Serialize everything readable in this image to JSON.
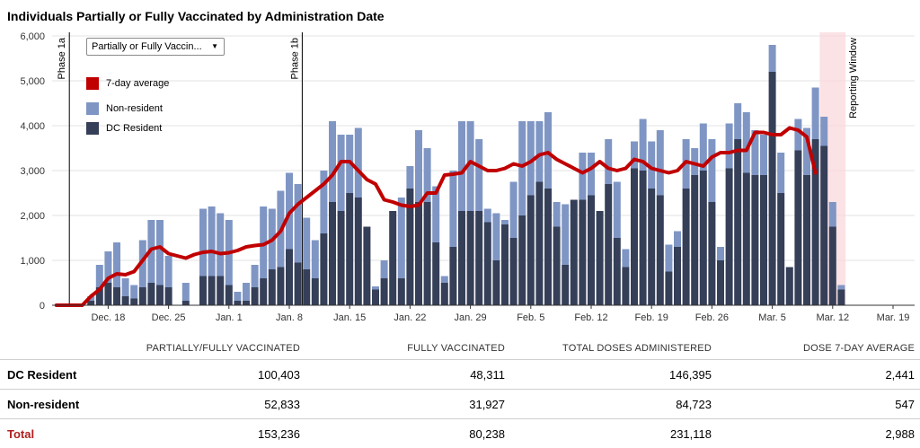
{
  "title": "Individuals Partially or Fully Vaccinated by Administration Date",
  "dropdown": {
    "selected": "Partially or Fully Vaccin...",
    "arrow_icon": "triangle-down-icon"
  },
  "legend": [
    {
      "label": "7-day average",
      "color": "#c00000"
    },
    {
      "label": "Non-resident",
      "color": "#7f96c4"
    },
    {
      "label": "DC Resident",
      "color": "#353f58"
    }
  ],
  "chart_data": {
    "type": "bar",
    "stacked": true,
    "title": "Individuals Partially or Fully Vaccinated by Administration Date",
    "x_start": "Dec. 12",
    "ylim": [
      0,
      6000
    ],
    "y_ticks": [
      0,
      1000,
      2000,
      3000,
      4000,
      5000,
      6000
    ],
    "y_tick_labels": [
      "0",
      "1,000",
      "2,000",
      "3,000",
      "4,000",
      "5,000",
      "6,000"
    ],
    "x_ticks": [
      {
        "label": "Dec. 18",
        "day": 6
      },
      {
        "label": "Dec. 25",
        "day": 13
      },
      {
        "label": "Jan. 1",
        "day": 20
      },
      {
        "label": "Jan. 8",
        "day": 27
      },
      {
        "label": "Jan. 15",
        "day": 34
      },
      {
        "label": "Jan. 22",
        "day": 41
      },
      {
        "label": "Jan. 29",
        "day": 48
      },
      {
        "label": "Feb. 5",
        "day": 55
      },
      {
        "label": "Feb. 12",
        "day": 62
      },
      {
        "label": "Feb. 19",
        "day": 69
      },
      {
        "label": "Feb. 26",
        "day": 76
      },
      {
        "label": "Mar. 5",
        "day": 83
      },
      {
        "label": "Mar. 12",
        "day": 90
      },
      {
        "label": "Mar. 19",
        "day": 97
      }
    ],
    "grid": "horizontal",
    "annotations": [
      {
        "label": "Phase 1a",
        "day": 2,
        "type": "line"
      },
      {
        "label": "Phase 1b",
        "day": 29,
        "type": "line"
      },
      {
        "label": "Reporting Window",
        "day_start": 89,
        "day_end": 92,
        "type": "band"
      }
    ],
    "series": [
      {
        "name": "DC Resident",
        "values": [
          0,
          0,
          0,
          0,
          100,
          400,
          500,
          400,
          200,
          150,
          400,
          500,
          450,
          400,
          0,
          100,
          0,
          650,
          650,
          650,
          450,
          100,
          100,
          400,
          600,
          800,
          850,
          1250,
          950,
          800,
          600,
          1600,
          2300,
          2100,
          2500,
          2400,
          1750,
          350,
          600,
          2100,
          600,
          2600,
          2300,
          2300,
          1400,
          500,
          1300,
          2100,
          2100,
          2100,
          1850,
          1000,
          1800,
          1500,
          2000,
          2450,
          2750,
          2600,
          1750,
          900,
          2350,
          2350,
          2450,
          2100,
          2700,
          1500,
          850,
          3050,
          3000,
          2600,
          2450,
          750,
          1300,
          2600,
          2900,
          3000,
          2300,
          1000,
          3050,
          3700,
          2950,
          2900,
          2900,
          5200,
          2500,
          850,
          3450,
          2900,
          3700,
          3550,
          1750,
          350
        ]
      },
      {
        "name": "Non-resident",
        "values": [
          0,
          0,
          0,
          0,
          100,
          500,
          700,
          1000,
          400,
          300,
          1050,
          1400,
          1450,
          700,
          0,
          400,
          0,
          1500,
          1550,
          1400,
          1450,
          200,
          400,
          500,
          1600,
          1350,
          1700,
          1700,
          1750,
          1150,
          850,
          1400,
          1800,
          1700,
          1300,
          1550,
          0,
          70,
          400,
          0,
          1800,
          500,
          1600,
          1200,
          1250,
          150,
          1700,
          2000,
          2000,
          1600,
          300,
          1050,
          100,
          1250,
          2100,
          1650,
          1350,
          1700,
          550,
          1350,
          0,
          1050,
          950,
          0,
          1000,
          1250,
          400,
          600,
          1150,
          1050,
          1450,
          600,
          350,
          1100,
          600,
          1050,
          1400,
          300,
          1000,
          800,
          1350,
          1000,
          900,
          600,
          900,
          0,
          700,
          1050,
          1150,
          650,
          550,
          100
        ]
      }
    ],
    "average": {
      "name": "7-day average",
      "values": [
        0,
        0,
        0,
        0,
        200,
        350,
        600,
        700,
        680,
        750,
        1000,
        1250,
        1300,
        1150,
        1100,
        1050,
        1130,
        1180,
        1200,
        1150,
        1170,
        1220,
        1300,
        1330,
        1350,
        1450,
        1650,
        2050,
        2250,
        2400,
        2550,
        2700,
        2900,
        3200,
        3200,
        3000,
        2800,
        2700,
        2350,
        2300,
        2230,
        2200,
        2230,
        2500,
        2500,
        2900,
        2920,
        2950,
        3200,
        3100,
        3000,
        3000,
        3050,
        3150,
        3100,
        3200,
        3350,
        3400,
        3250,
        3150,
        3050,
        2950,
        3050,
        3200,
        3050,
        3000,
        3050,
        3250,
        3200,
        3050,
        3000,
        2950,
        3000,
        3200,
        3150,
        3100,
        3300,
        3400,
        3400,
        3450,
        3450,
        3850,
        3850,
        3800,
        3800,
        3950,
        3900,
        3750,
        2950
      ]
    }
  },
  "table": {
    "headers": [
      "",
      "PARTIALLY/FULLY VACCINATED",
      "FULLY VACCINATED",
      "TOTAL DOSES ADMINISTERED",
      "DOSE 7-DAY AVERAGE"
    ],
    "rows": [
      {
        "label": "DC Resident",
        "values": [
          "100,403",
          "48,311",
          "146,395",
          "2,441"
        ]
      },
      {
        "label": "Non-resident",
        "values": [
          "52,833",
          "31,927",
          "84,723",
          "547"
        ]
      },
      {
        "label": "Total",
        "values": [
          "153,236",
          "80,238",
          "231,118",
          "2,988"
        ]
      }
    ]
  }
}
